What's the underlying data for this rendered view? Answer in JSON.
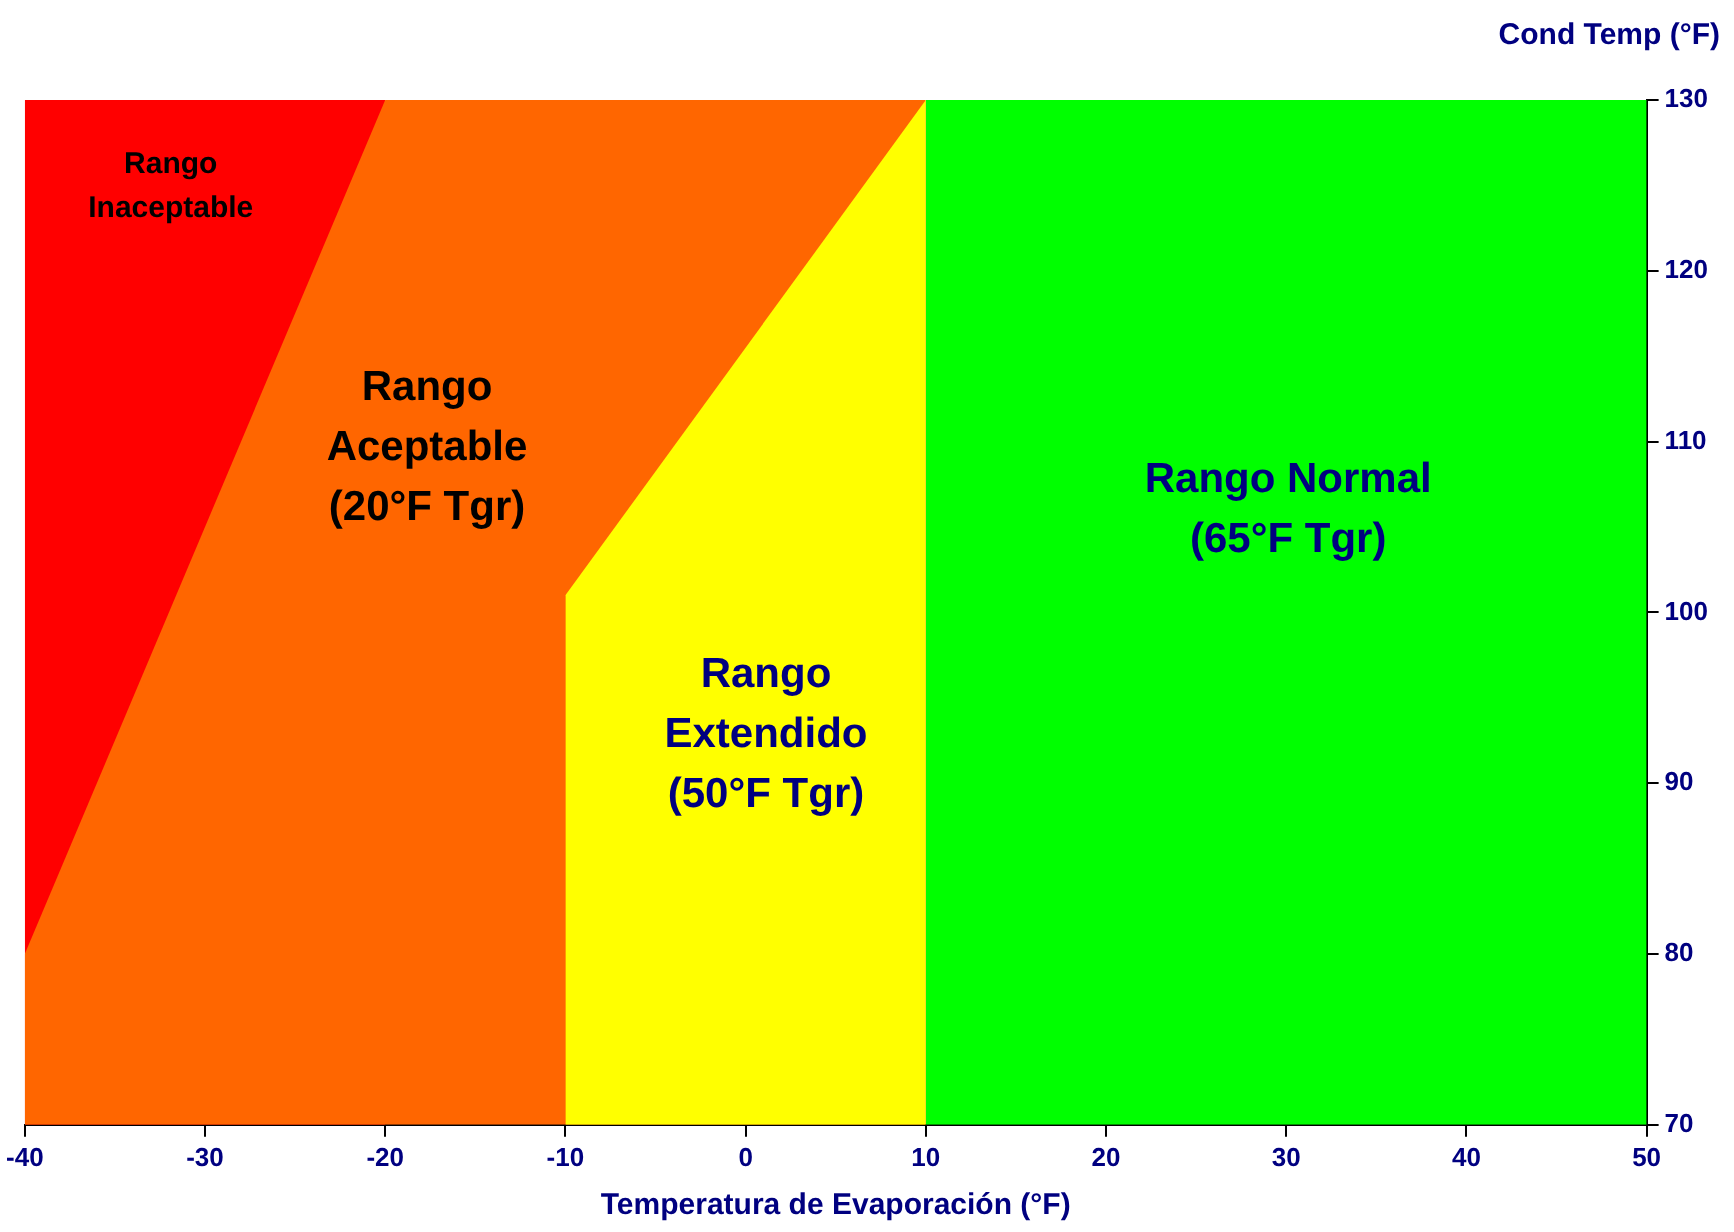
{
  "chart_data": {
    "type": "area",
    "xlabel": "Temperatura de Evaporación (°F)",
    "ylabel": "Cond Temp (°F)",
    "series": [
      {
        "x": [
          -40,
          -20
        ],
        "values": [
          130,
          130
        ],
        "color": "#ff0000"
      },
      {
        "x": [
          -40,
          -20,
          10
        ],
        "values": [
          80,
          130,
          130
        ],
        "color": "#ff6600"
      },
      {
        "x": [
          -10,
          10
        ],
        "values": [
          101,
          130
        ],
        "color": "#ffff00"
      },
      {
        "x": [
          10,
          50
        ],
        "values": [
          130,
          130
        ],
        "color": "#00ff00"
      }
    ],
    "xlim": [
      -40,
      50
    ],
    "xticks": [
      -40,
      -30,
      -20,
      -10,
      0,
      10,
      20,
      30,
      40,
      50
    ],
    "ylim": [
      70,
      130
    ],
    "yticks": [
      70,
      80,
      90,
      100,
      110,
      120,
      130
    ],
    "grid": false,
    "legend": false,
    "annotations": [
      "Rango\nInaceptable",
      "Rango\nAceptable\n(20°F Tgr)",
      "Rango\nExtendido\n(50°F Tgr)",
      "Rango Normal\n(65°F Tgr)"
    ]
  }
}
